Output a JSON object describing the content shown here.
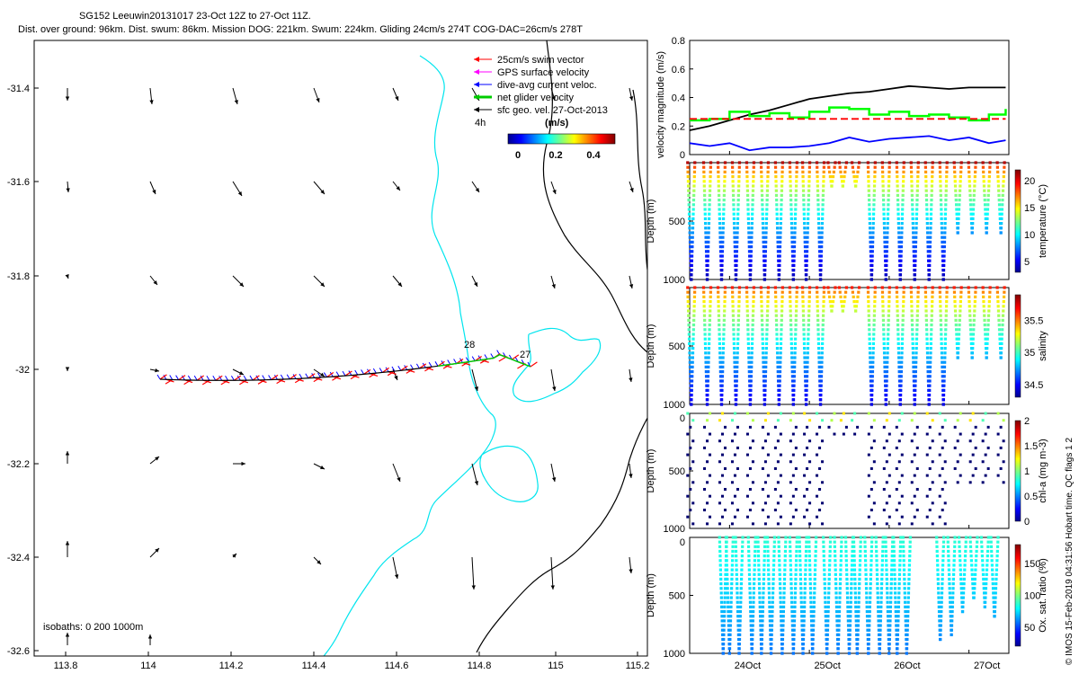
{
  "header": {
    "title": "SG152 Leeuwin20131017 23-Oct 12Z to 27-Oct 11Z.",
    "subtitle": "Dist. over ground: 96km. Dist. swum: 86km. Mission DOG: 221km. Swum: 224km. Gliding 24cm/s 274T COG-DAC=26cm/s 278T"
  },
  "footer": {
    "isobaths": "isobaths: 0   200  1000m",
    "imos_credit": "© IMOS 15-Feb-2019 04:31:56 Hobart time. QC flags 1  2"
  },
  "map": {
    "legend": [
      {
        "label": "25cm/s swim vector",
        "color": "#ff0000"
      },
      {
        "label": "GPS surface velocity",
        "color": "#ff00ff"
      },
      {
        "label": "dive-avg current veloc.",
        "color": "#0000ff"
      },
      {
        "label": "net glider velocity",
        "color": "#00cc00"
      },
      {
        "label": "sfc geo. vel. 27-Oct-2013",
        "color": "#000000"
      }
    ],
    "hours_label": "4h",
    "colorbar": {
      "label": "(m/s)",
      "ticks": [
        "0",
        "0.2",
        "0.4"
      ]
    },
    "point_labels": [
      "28",
      "27"
    ],
    "x_ticks": [
      "113.8",
      "114",
      "114.2",
      "114.4",
      "114.6",
      "114.8",
      "115",
      "115.2"
    ],
    "y_ticks": [
      "-31.4",
      "-31.6",
      "-31.8",
      "-32",
      "-32.2",
      "-32.4",
      "-32.6"
    ]
  },
  "chart_data": [
    {
      "type": "line",
      "name": "velocity",
      "ylabel": "velocity magnitude (m/s)",
      "x": [
        23.5,
        23.75,
        24.0,
        24.25,
        24.5,
        24.75,
        25.0,
        25.25,
        25.5,
        25.75,
        26.0,
        26.25,
        26.5,
        26.75,
        27.0,
        27.25,
        27.46
      ],
      "series": [
        {
          "color": "#000000",
          "values": [
            0.17,
            0.2,
            0.24,
            0.28,
            0.31,
            0.35,
            0.39,
            0.41,
            0.43,
            0.44,
            0.46,
            0.48,
            0.47,
            0.46,
            0.47,
            0.47,
            0.47
          ]
        },
        {
          "color": "#00ff00",
          "values": [
            0.24,
            0.25,
            0.3,
            0.27,
            0.29,
            0.26,
            0.3,
            0.33,
            0.32,
            0.28,
            0.3,
            0.27,
            0.28,
            0.26,
            0.24,
            0.28,
            0.32
          ]
        },
        {
          "color": "#ff0000",
          "values": [
            0.25,
            0.25,
            0.25,
            0.25,
            0.25,
            0.25,
            0.25,
            0.25,
            0.25,
            0.25,
            0.25,
            0.25,
            0.25,
            0.25,
            0.25,
            0.25,
            0.25
          ]
        },
        {
          "color": "#0000ff",
          "values": [
            0.08,
            0.06,
            0.08,
            0.03,
            0.05,
            0.05,
            0.06,
            0.08,
            0.12,
            0.09,
            0.11,
            0.12,
            0.13,
            0.1,
            0.12,
            0.08,
            0.1
          ]
        }
      ],
      "y_ticks": [
        "0",
        "0.2",
        "0.4",
        "0.6",
        "0.8"
      ],
      "ylim": [
        0,
        0.8
      ]
    },
    {
      "type": "scatter",
      "name": "temperature",
      "ylabel": "Depth (m)",
      "cbar_label": "temperature (°C)",
      "cbar_ticks": [
        "5",
        "10",
        "15",
        "20"
      ],
      "y_ticks": [
        "500",
        "1000"
      ],
      "profiles_x": [
        23.52,
        23.72,
        23.9,
        24.08,
        24.26,
        24.44,
        24.62,
        24.8,
        24.96,
        25.14,
        25.28,
        25.42,
        25.58,
        25.78,
        25.96,
        26.14,
        26.32,
        26.5,
        26.68,
        26.86,
        27.04,
        27.22,
        27.4
      ],
      "max_depth": [
        1000,
        1000,
        1000,
        1000,
        1000,
        1000,
        1000,
        1000,
        1000,
        1000,
        200,
        200,
        200,
        1000,
        1000,
        1000,
        1000,
        1000,
        1000,
        600,
        600,
        600,
        600
      ],
      "vmin": 3,
      "vmax": 22
    },
    {
      "type": "scatter",
      "name": "salinity",
      "ylabel": "Depth (m)",
      "cbar_label": "salinity",
      "cbar_ticks": [
        "34.5",
        "35",
        "35.5"
      ],
      "y_ticks": [
        "500",
        "1000"
      ],
      "vmin": 34.3,
      "vmax": 35.9
    },
    {
      "type": "scatter",
      "name": "chl-a",
      "ylabel": "Depth (m)",
      "cbar_label": "chl-a (mg m-3)",
      "cbar_ticks": [
        "0",
        "0.5",
        "1",
        "1.5",
        "2"
      ],
      "y_ticks": [
        "0",
        "500",
        "1000"
      ],
      "vmin": 0,
      "vmax": 2
    },
    {
      "type": "scatter",
      "name": "oxygen",
      "ylabel": "Depth (m)",
      "cbar_label": "Ox. sat. ratio (%)",
      "cbar_ticks": [
        "50",
        "100",
        "150"
      ],
      "y_ticks": [
        "0",
        "500",
        "1000"
      ],
      "profiles_x": [
        23.92,
        24.0,
        24.12,
        24.28,
        24.4,
        24.52,
        24.66,
        24.8,
        24.92,
        25.04,
        25.22,
        25.36,
        25.5,
        25.6,
        25.74,
        25.88,
        26.0,
        26.1,
        26.22,
        26.64,
        26.78,
        26.92,
        27.06,
        27.2,
        27.32
      ],
      "max_depth": [
        1000,
        1000,
        1000,
        1000,
        1000,
        1000,
        1000,
        1000,
        1000,
        1000,
        1000,
        1000,
        1000,
        1000,
        1000,
        1000,
        1000,
        1000,
        1000,
        900,
        850,
        650,
        550,
        600,
        700
      ],
      "vmin": 20,
      "vmax": 180
    }
  ],
  "time_axis": {
    "ticks": [
      "24Oct",
      "25Oct",
      "26Oct",
      "27Oct"
    ],
    "values": [
      24,
      25,
      26,
      27
    ],
    "xlim": [
      23.5,
      27.5
    ]
  }
}
